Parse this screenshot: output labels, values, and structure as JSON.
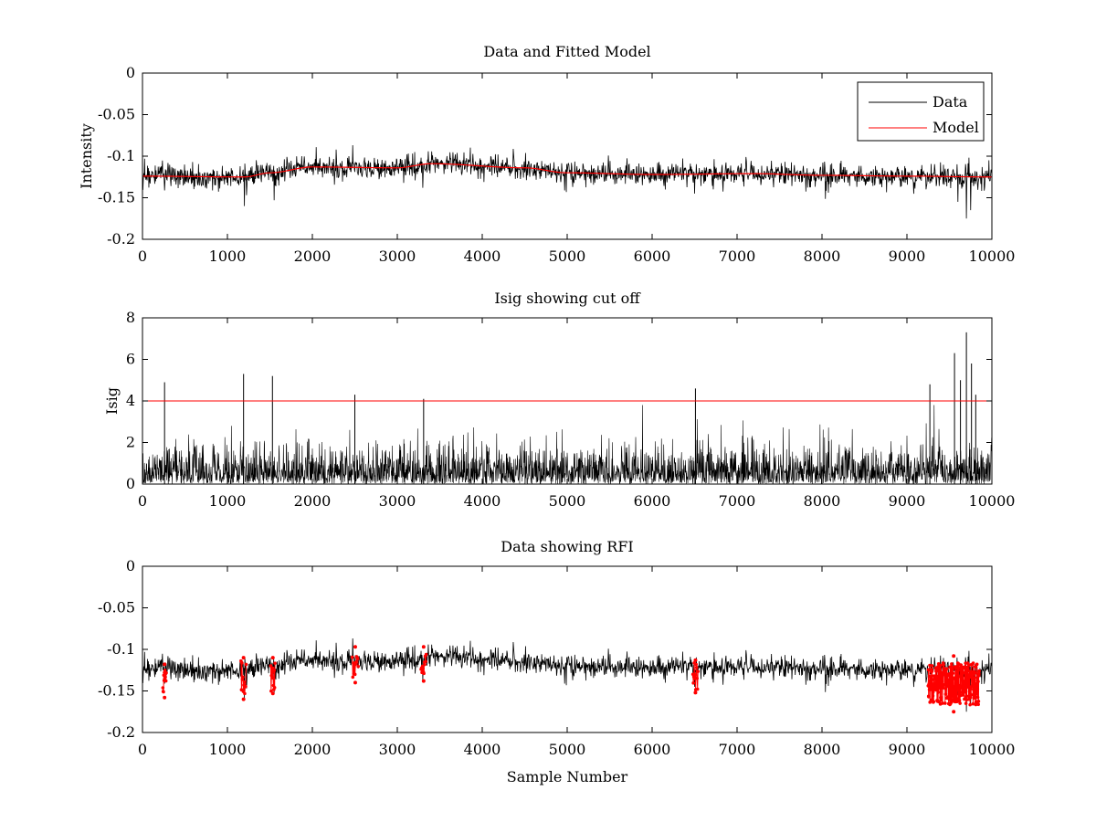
{
  "figure": {
    "background": "#ffffff",
    "colors": {
      "data": "#000000",
      "model": "#ff0000",
      "cutoff": "#ff0000",
      "rfi": "#ff0000"
    }
  },
  "chart_data": [
    {
      "id": "intensity",
      "type": "line",
      "title": "Data and Fitted Model",
      "xlabel": "",
      "ylabel": "Intensity",
      "xlim": [
        0,
        10000
      ],
      "ylim": [
        -0.2,
        0
      ],
      "xticks": [
        0,
        1000,
        2000,
        3000,
        4000,
        5000,
        6000,
        7000,
        8000,
        9000,
        10000
      ],
      "xtick_labels": [
        "0",
        "1000",
        "2000",
        "3000",
        "4000",
        "5000",
        "6000",
        "7000",
        "8000",
        "9000",
        "10000"
      ],
      "yticks": [
        0,
        -0.05,
        -0.1,
        -0.15,
        -0.2
      ],
      "ytick_labels": [
        "0",
        "-0.05",
        "-0.1",
        "-0.15",
        "-0.2"
      ],
      "legend": {
        "position": "top-right",
        "entries": [
          "Data",
          "Model"
        ]
      },
      "series": [
        {
          "name": "Data",
          "color": "#000000",
          "kind": "noise-around-model",
          "baseline_x": [
            0,
            1200,
            1500,
            2000,
            3000,
            3400,
            4500,
            5000,
            6000,
            7200,
            8000,
            9000,
            10000
          ],
          "baseline_y": [
            -0.124,
            -0.125,
            -0.12,
            -0.113,
            -0.114,
            -0.109,
            -0.114,
            -0.12,
            -0.122,
            -0.121,
            -0.123,
            -0.124,
            -0.125
          ],
          "noise_sd": 0.006,
          "extremes": [
            {
              "x": 1200,
              "y": -0.16
            },
            {
              "x": 1550,
              "y": -0.153
            },
            {
              "x": 3300,
              "y": -0.138
            },
            {
              "x": 6500,
              "y": -0.145
            },
            {
              "x": 9600,
              "y": -0.155
            },
            {
              "x": 9700,
              "y": -0.175
            },
            {
              "x": 9750,
              "y": -0.165
            }
          ]
        },
        {
          "name": "Model",
          "color": "#ff0000",
          "x": [
            0,
            1200,
            1500,
            2000,
            3000,
            3400,
            4500,
            5000,
            6000,
            7200,
            8000,
            9000,
            10000
          ],
          "y": [
            -0.124,
            -0.125,
            -0.12,
            -0.113,
            -0.114,
            -0.109,
            -0.114,
            -0.12,
            -0.122,
            -0.121,
            -0.123,
            -0.124,
            -0.125
          ]
        }
      ]
    },
    {
      "id": "isig",
      "type": "line",
      "title": "Isig showing cut off",
      "xlabel": "",
      "ylabel": "Isig",
      "xlim": [
        0,
        10000
      ],
      "ylim": [
        0,
        8
      ],
      "xticks": [
        0,
        1000,
        2000,
        3000,
        4000,
        5000,
        6000,
        7000,
        8000,
        9000,
        10000
      ],
      "xtick_labels": [
        "0",
        "1000",
        "2000",
        "3000",
        "4000",
        "5000",
        "6000",
        "7000",
        "8000",
        "9000",
        "10000"
      ],
      "yticks": [
        0,
        2,
        4,
        6,
        8
      ],
      "ytick_labels": [
        "0",
        "2",
        "4",
        "6",
        "8"
      ],
      "cutoff": {
        "y": 4,
        "color": "#ff0000"
      },
      "series": [
        {
          "name": "Isig",
          "color": "#000000",
          "kind": "abs-noise",
          "noise_scale": 0.8,
          "peaks": [
            {
              "x": 260,
              "y": 4.9
            },
            {
              "x": 1190,
              "y": 5.3
            },
            {
              "x": 1530,
              "y": 5.2
            },
            {
              "x": 2500,
              "y": 4.3
            },
            {
              "x": 3310,
              "y": 4.1
            },
            {
              "x": 6510,
              "y": 4.6
            },
            {
              "x": 9270,
              "y": 4.8
            },
            {
              "x": 9560,
              "y": 6.3
            },
            {
              "x": 9630,
              "y": 5.0
            },
            {
              "x": 9700,
              "y": 7.3
            },
            {
              "x": 9760,
              "y": 5.8
            },
            {
              "x": 9810,
              "y": 4.3
            }
          ]
        }
      ]
    },
    {
      "id": "rfi",
      "type": "line",
      "title": "Data showing RFI",
      "xlabel": "Sample Number",
      "ylabel": "",
      "xlim": [
        0,
        10000
      ],
      "ylim": [
        -0.2,
        0
      ],
      "xticks": [
        0,
        1000,
        2000,
        3000,
        4000,
        5000,
        6000,
        7000,
        8000,
        9000,
        10000
      ],
      "xtick_labels": [
        "0",
        "1000",
        "2000",
        "3000",
        "4000",
        "5000",
        "6000",
        "7000",
        "8000",
        "9000",
        "10000"
      ],
      "yticks": [
        0,
        -0.05,
        -0.1,
        -0.15,
        -0.2
      ],
      "ytick_labels": [
        "0",
        "-0.05",
        "-0.1",
        "-0.15",
        "-0.2"
      ],
      "series": [
        {
          "name": "Data",
          "color": "#000000",
          "same_as": "intensity.Data"
        },
        {
          "name": "RFI",
          "color": "#ff0000",
          "marker": "dot",
          "regions": [
            {
              "x_start": 240,
              "x_end": 280,
              "y_min": -0.158,
              "y_max": -0.118
            },
            {
              "x_start": 1160,
              "x_end": 1220,
              "y_min": -0.16,
              "y_max": -0.11
            },
            {
              "x_start": 1510,
              "x_end": 1560,
              "y_min": -0.153,
              "y_max": -0.11
            },
            {
              "x_start": 2470,
              "x_end": 2540,
              "y_min": -0.14,
              "y_max": -0.097
            },
            {
              "x_start": 3280,
              "x_end": 3340,
              "y_min": -0.138,
              "y_max": -0.097
            },
            {
              "x_start": 6480,
              "x_end": 6540,
              "y_min": -0.152,
              "y_max": -0.113
            },
            {
              "x_start": 9250,
              "x_end": 9850,
              "y_min": -0.175,
              "y_max": -0.108,
              "dense": true
            }
          ]
        }
      ]
    }
  ]
}
